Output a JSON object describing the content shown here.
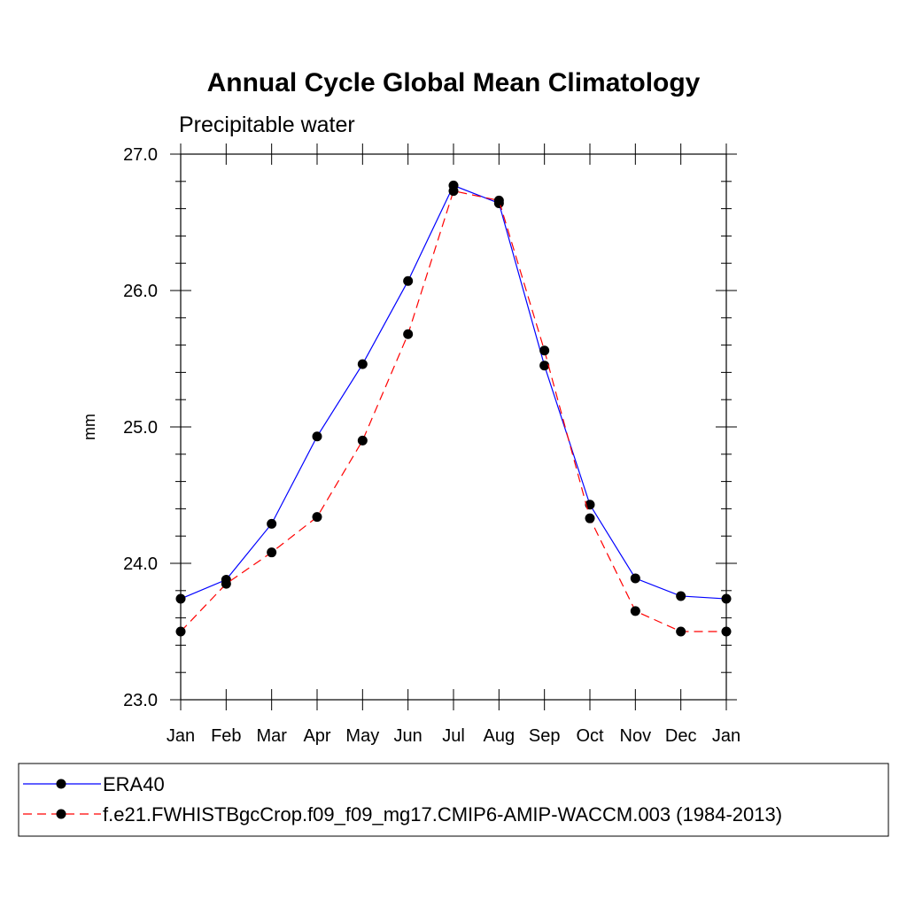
{
  "chart_data": {
    "type": "line",
    "title": "Annual Cycle Global Mean Climatology",
    "subtitle": "Precipitable water",
    "xlabel": "",
    "ylabel": "mm",
    "categories": [
      "Jan",
      "Feb",
      "Mar",
      "Apr",
      "May",
      "Jun",
      "Jul",
      "Aug",
      "Sep",
      "Oct",
      "Nov",
      "Dec",
      "Jan"
    ],
    "ylim": [
      23.0,
      27.0
    ],
    "yticks": [
      23.0,
      24.0,
      25.0,
      26.0,
      27.0
    ],
    "ytick_labels": [
      "23.0",
      "24.0",
      "25.0",
      "26.0",
      "27.0"
    ],
    "legend_position": "bottom",
    "series": [
      {
        "name": "ERA40",
        "color": "#0000ff",
        "line_style": "solid",
        "marker": "filled-circle",
        "values": [
          23.74,
          23.88,
          24.29,
          24.93,
          25.46,
          26.07,
          26.77,
          26.64,
          25.45,
          24.43,
          23.89,
          23.76,
          23.74
        ]
      },
      {
        "name": "f.e21.FWHISTBgcCrop.f09_f09_mg17.CMIP6-AMIP-WACCM.003 (1984-2013)",
        "color": "#ff0000",
        "line_style": "dashed",
        "marker": "filled-circle",
        "values": [
          23.5,
          23.85,
          24.08,
          24.34,
          24.9,
          25.68,
          26.73,
          26.66,
          25.56,
          24.33,
          23.65,
          23.5,
          23.5
        ]
      }
    ]
  }
}
